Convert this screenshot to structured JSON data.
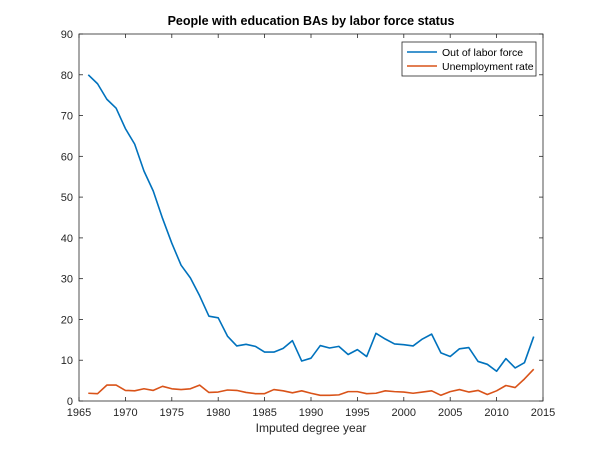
{
  "chart_data": {
    "type": "line",
    "title": "People with education BAs by labor force status",
    "xlabel": "Imputed degree year",
    "ylabel": "",
    "xlim": [
      1965,
      2015
    ],
    "ylim": [
      0,
      90
    ],
    "xticks": [
      1965,
      1970,
      1975,
      1980,
      1985,
      1990,
      1995,
      2000,
      2005,
      2010,
      2015
    ],
    "yticks": [
      0,
      10,
      20,
      30,
      40,
      50,
      60,
      70,
      80,
      90
    ],
    "grid": false,
    "legend_position": "top-right",
    "x": [
      1966,
      1967,
      1968,
      1969,
      1970,
      1971,
      1972,
      1973,
      1974,
      1975,
      1976,
      1977,
      1978,
      1979,
      1980,
      1981,
      1982,
      1983,
      1984,
      1985,
      1986,
      1987,
      1988,
      1989,
      1990,
      1991,
      1992,
      1993,
      1994,
      1995,
      1996,
      1997,
      1998,
      1999,
      2000,
      2001,
      2002,
      2003,
      2004,
      2005,
      2006,
      2007,
      2008,
      2009,
      2010,
      2011,
      2012,
      2013,
      2014
    ],
    "series": [
      {
        "name": "Out of labor force",
        "color": "#0072BD",
        "values": [
          80,
          77.8,
          74,
          71.8,
          66.8,
          63,
          56.4,
          51.5,
          44.8,
          38.7,
          33.3,
          30.2,
          25.8,
          20.8,
          20.4,
          15.9,
          13.5,
          13.9,
          13.4,
          12,
          12,
          12.9,
          14.8,
          9.8,
          10.5,
          13.6,
          13,
          13.4,
          11.4,
          12.6,
          10.9,
          16.6,
          15.2,
          14,
          13.8,
          13.5,
          15.2,
          16.4,
          11.8,
          10.9,
          12.8,
          13.1,
          9.7,
          9,
          7.3,
          10.4,
          8.1,
          9.4,
          15.8
        ]
      },
      {
        "name": "Unemployment rate",
        "color": "#D95319",
        "values": [
          1.9,
          1.8,
          3.9,
          3.9,
          2.6,
          2.5,
          3,
          2.6,
          3.6,
          3,
          2.8,
          3,
          3.9,
          2.1,
          2.2,
          2.7,
          2.6,
          2.1,
          1.8,
          1.8,
          2.8,
          2.5,
          2,
          2.5,
          1.9,
          1.4,
          1.4,
          1.5,
          2.3,
          2.3,
          1.8,
          1.9,
          2.5,
          2.3,
          2.2,
          1.9,
          2.2,
          2.5,
          1.4,
          2.3,
          2.8,
          2.2,
          2.6,
          1.6,
          2.5,
          3.8,
          3.3,
          5.4,
          7.8
        ]
      }
    ]
  }
}
